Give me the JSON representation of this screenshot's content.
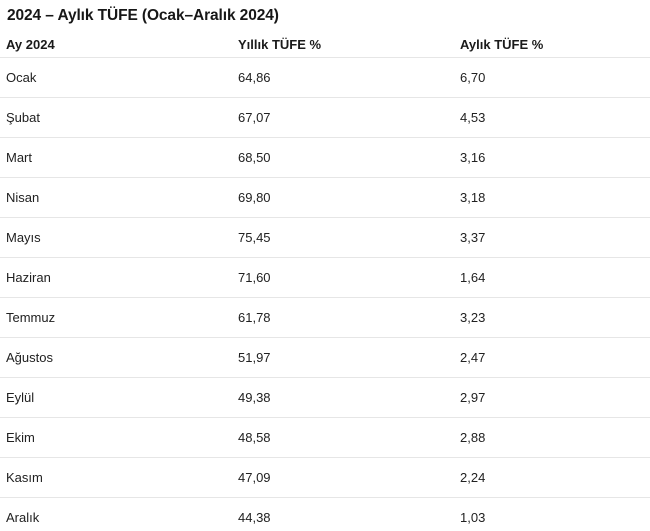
{
  "title": "2024 – Aylık TÜFE (Ocak–Aralık 2024)",
  "colors": {
    "background": "#ffffff",
    "text": "#1f1f1f",
    "divider": "#e6e6e6"
  },
  "table": {
    "columns": [
      "Ay 2024",
      "Yıllık TÜFE %",
      "Aylık TÜFE %"
    ],
    "rows": [
      {
        "month": "Ocak",
        "yearly": "64,86",
        "monthly": "6,70"
      },
      {
        "month": "Şubat",
        "yearly": "67,07",
        "monthly": "4,53"
      },
      {
        "month": "Mart",
        "yearly": "68,50",
        "monthly": "3,16"
      },
      {
        "month": "Nisan",
        "yearly": "69,80",
        "monthly": "3,18"
      },
      {
        "month": "Mayıs",
        "yearly": "75,45",
        "monthly": "3,37"
      },
      {
        "month": "Haziran",
        "yearly": "71,60",
        "monthly": "1,64"
      },
      {
        "month": "Temmuz",
        "yearly": "61,78",
        "monthly": "3,23"
      },
      {
        "month": "Ağustos",
        "yearly": "51,97",
        "monthly": "2,47"
      },
      {
        "month": "Eylül",
        "yearly": "49,38",
        "monthly": "2,97"
      },
      {
        "month": "Ekim",
        "yearly": "48,58",
        "monthly": "2,88"
      },
      {
        "month": "Kasım",
        "yearly": "47,09",
        "monthly": "2,24"
      },
      {
        "month": "Aralık",
        "yearly": "44,38",
        "monthly": "1,03"
      }
    ]
  },
  "chart_data": {
    "type": "table",
    "title": "2024 – Aylık TÜFE (Ocak–Aralık 2024)",
    "categories": [
      "Ocak",
      "Şubat",
      "Mart",
      "Nisan",
      "Mayıs",
      "Haziran",
      "Temmuz",
      "Ağustos",
      "Eylül",
      "Ekim",
      "Kasım",
      "Aralık"
    ],
    "series": [
      {
        "name": "Yıllık TÜFE %",
        "values": [
          64.86,
          67.07,
          68.5,
          69.8,
          75.45,
          71.6,
          61.78,
          51.97,
          49.38,
          48.58,
          47.09,
          44.38
        ]
      },
      {
        "name": "Aylık TÜFE %",
        "values": [
          6.7,
          4.53,
          3.16,
          3.18,
          3.37,
          1.64,
          3.23,
          2.47,
          2.97,
          2.88,
          2.24,
          1.03
        ]
      }
    ],
    "layout": {
      "grid": "horizontal-dividers-only",
      "legend": "none",
      "value_format": "comma-decimal"
    }
  }
}
